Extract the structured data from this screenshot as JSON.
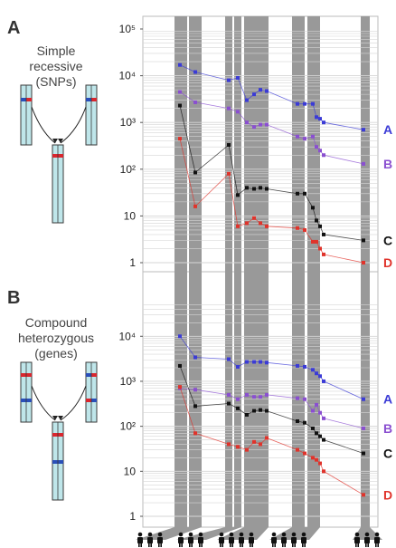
{
  "panels": [
    {
      "letter": "A",
      "lines": [
        "Simple",
        "recessive",
        "(SNPs)"
      ]
    },
    {
      "letter": "B",
      "lines": [
        "Compound",
        "heterozygous",
        "(genes)"
      ]
    }
  ],
  "colors": {
    "A": "#3b3bd6",
    "B": "#8a4fd0",
    "C": "#111111",
    "D": "#e0332b",
    "column": "#999999",
    "gridline": "#d6d6d6",
    "chromosome": "#bfe6ea",
    "chromosome_stroke": "#3a3a3a",
    "band_red": "#d9262e",
    "band_blue": "#2a4fb8"
  },
  "chart_data": [
    {
      "panel": "A",
      "type": "scatter",
      "log_y": true,
      "ylim": [
        1,
        100000
      ],
      "y_tick_labels": [
        "1",
        "10",
        "10²",
        "10³",
        "10⁴",
        "10⁵"
      ],
      "series": [
        {
          "name": "A",
          "x": [
            1,
            2,
            4,
            5,
            6,
            7,
            8,
            9,
            10,
            11,
            12,
            13,
            14,
            15,
            16
          ],
          "y": [
            17000,
            12000,
            8000,
            9000,
            3000,
            4000,
            5000,
            4700,
            2500,
            2500,
            2500,
            1300,
            1200,
            1000,
            700
          ]
        },
        {
          "name": "B",
          "x": [
            1,
            2,
            4,
            5,
            6,
            7,
            8,
            9,
            10,
            11,
            12,
            13,
            14,
            15,
            16
          ],
          "y": [
            4500,
            2700,
            2000,
            1700,
            1000,
            800,
            900,
            900,
            500,
            450,
            500,
            300,
            250,
            200,
            130
          ]
        },
        {
          "name": "C",
          "x": [
            1,
            2,
            4,
            5,
            6,
            7,
            8,
            9,
            10,
            11,
            12,
            13,
            14,
            15,
            16
          ],
          "y": [
            2300,
            85,
            330,
            28,
            40,
            38,
            40,
            38,
            30,
            30,
            15,
            8,
            6,
            4,
            3
          ]
        },
        {
          "name": "D",
          "x": [
            1,
            2,
            4,
            5,
            6,
            7,
            8,
            9,
            10,
            11,
            12,
            13,
            14,
            15,
            16
          ],
          "y": [
            450,
            16,
            80,
            6,
            7,
            9,
            7,
            6,
            5.5,
            5,
            2.8,
            2.8,
            2,
            1.5,
            1
          ]
        }
      ]
    },
    {
      "panel": "B",
      "type": "scatter",
      "log_y": true,
      "ylim": [
        1,
        50000
      ],
      "y_tick_labels": [
        "1",
        "10",
        "10²",
        "10³",
        "10⁴"
      ],
      "series": [
        {
          "name": "A",
          "x": [
            1,
            2,
            4,
            5,
            6,
            7,
            8,
            9,
            10,
            11,
            12,
            13,
            14,
            15,
            16
          ],
          "y": [
            10000,
            3400,
            3100,
            2100,
            2700,
            2700,
            2700,
            2600,
            2200,
            2100,
            1800,
            1500,
            1300,
            1000,
            400
          ]
        },
        {
          "name": "B",
          "x": [
            1,
            2,
            4,
            5,
            6,
            7,
            8,
            9,
            10,
            11,
            12,
            13,
            14,
            15,
            16
          ],
          "y": [
            700,
            650,
            500,
            400,
            500,
            450,
            450,
            500,
            420,
            400,
            220,
            300,
            200,
            150,
            90
          ]
        },
        {
          "name": "C",
          "x": [
            1,
            2,
            4,
            5,
            6,
            7,
            8,
            9,
            10,
            11,
            12,
            13,
            14,
            15,
            16
          ],
          "y": [
            2200,
            280,
            320,
            250,
            180,
            220,
            230,
            220,
            130,
            120,
            90,
            70,
            60,
            50,
            25
          ]
        },
        {
          "name": "D",
          "x": [
            1,
            2,
            4,
            5,
            6,
            7,
            8,
            9,
            10,
            11,
            12,
            13,
            14,
            15,
            16
          ],
          "y": [
            750,
            70,
            40,
            35,
            30,
            45,
            40,
            55,
            30,
            25,
            20,
            18,
            15,
            10,
            3
          ]
        }
      ]
    }
  ]
}
